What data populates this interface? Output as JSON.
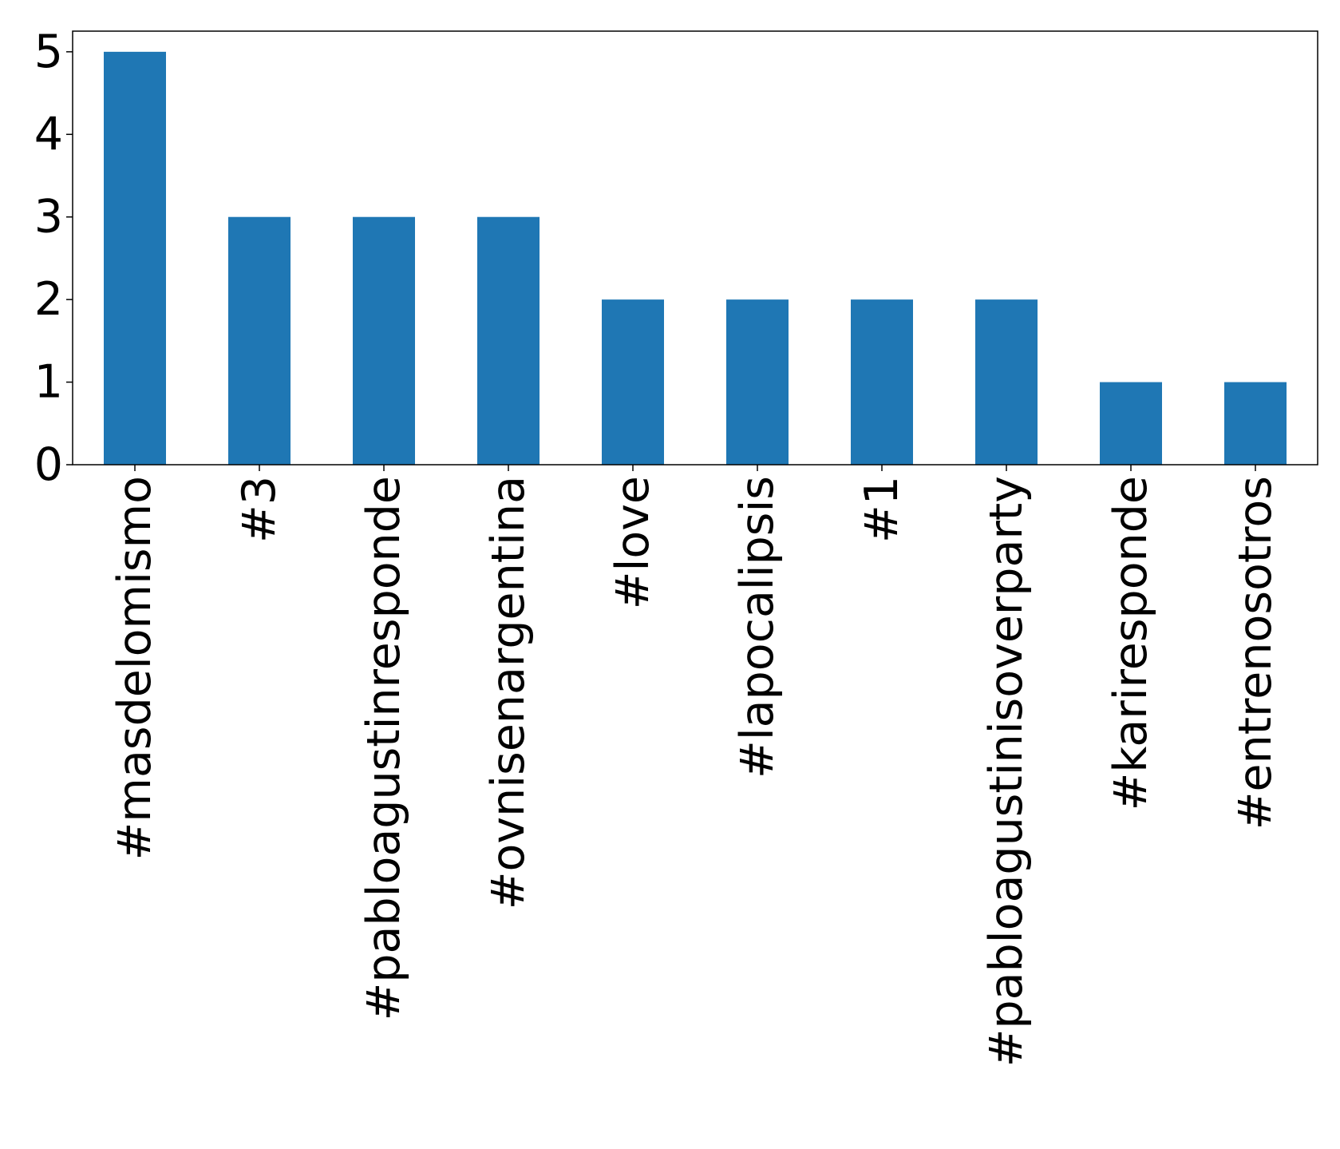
{
  "chart_data": {
    "type": "bar",
    "categories": [
      "#masdelomismo",
      "#3",
      "#pabloagustinresponde",
      "#ovnisenargentina",
      "#love",
      "#lapocalipsis",
      "#1",
      "#pabloagustinisoverparty",
      "#kariresponde",
      "#entrenosotros"
    ],
    "values": [
      5,
      3,
      3,
      3,
      2,
      2,
      2,
      2,
      1,
      1
    ],
    "title": "",
    "xlabel": "",
    "ylabel": "",
    "ylim": [
      0,
      5.25
    ],
    "yticks": [
      0,
      1,
      2,
      3,
      4,
      5
    ],
    "grid": false,
    "bar_color": "#1f77b4"
  }
}
